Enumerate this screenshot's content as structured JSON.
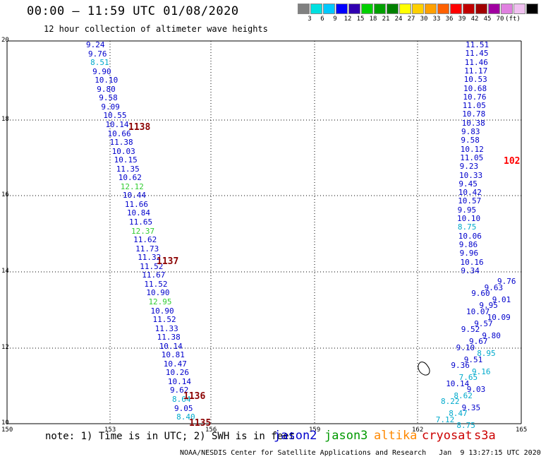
{
  "header": {
    "title": "00:00 – 11:59 UTC 01/08/2020",
    "subtitle": "12 hour collection of altimeter wave heights"
  },
  "colorbar": {
    "colors": [
      "#808080",
      "#00e0e0",
      "#00c8ff",
      "#0000ff",
      "#3000b0",
      "#00d000",
      "#00a000",
      "#008000",
      "#ffff00",
      "#ffd000",
      "#ffa000",
      "#ff6000",
      "#ff0000",
      "#c00000",
      "#a00000",
      "#a000a0",
      "#e080e0",
      "#f0c0f0",
      "#000000"
    ],
    "labels": [
      "3",
      "6",
      "9",
      "12",
      "15",
      "18",
      "21",
      "24",
      "27",
      "30",
      "33",
      "36",
      "39",
      "42",
      "45",
      "70",
      "(ft)"
    ]
  },
  "axes": {
    "lat_ticks": [
      "20",
      "18",
      "16",
      "14",
      "12",
      "10"
    ],
    "lon_ticks": [
      "150",
      "153",
      "156",
      "159",
      "162",
      "165"
    ]
  },
  "tracks": {
    "left": [
      {
        "v": "9.24",
        "c": "#0000cc"
      },
      {
        "v": "9.76",
        "c": "#0000cc"
      },
      {
        "v": "8.51",
        "c": "#00aacc"
      },
      {
        "v": "9.90",
        "c": "#0000cc"
      },
      {
        "v": "10.10",
        "c": "#0000cc"
      },
      {
        "v": "9.80",
        "c": "#0000cc"
      },
      {
        "v": "9.58",
        "c": "#0000cc"
      },
      {
        "v": "9.09",
        "c": "#0000cc"
      },
      {
        "v": "10.55",
        "c": "#0000cc"
      },
      {
        "v": "10.14",
        "c": "#0000cc"
      },
      {
        "v": "10.66",
        "c": "#0000cc"
      },
      {
        "v": "11.38",
        "c": "#0000cc"
      },
      {
        "v": "10.03",
        "c": "#0000cc"
      },
      {
        "v": "10.15",
        "c": "#0000cc"
      },
      {
        "v": "11.35",
        "c": "#0000cc"
      },
      {
        "v": "10.62",
        "c": "#0000cc"
      },
      {
        "v": "12.12",
        "c": "#33cc33"
      },
      {
        "v": "10.44",
        "c": "#0000cc"
      },
      {
        "v": "11.66",
        "c": "#0000cc"
      },
      {
        "v": "10.84",
        "c": "#0000cc"
      },
      {
        "v": "11.65",
        "c": "#0000cc"
      },
      {
        "v": "12.37",
        "c": "#33cc33"
      },
      {
        "v": "11.62",
        "c": "#0000cc"
      },
      {
        "v": "11.73",
        "c": "#0000cc"
      },
      {
        "v": "11.32",
        "c": "#0000cc"
      },
      {
        "v": "11.52",
        "c": "#0000cc"
      },
      {
        "v": "11.67",
        "c": "#0000cc"
      },
      {
        "v": "11.52",
        "c": "#0000cc"
      },
      {
        "v": "10.90",
        "c": "#0000cc"
      },
      {
        "v": "12.95",
        "c": "#33cc33"
      },
      {
        "v": "10.90",
        "c": "#0000cc"
      },
      {
        "v": "11.52",
        "c": "#0000cc"
      },
      {
        "v": "11.33",
        "c": "#0000cc"
      },
      {
        "v": "11.38",
        "c": "#0000cc"
      },
      {
        "v": "10.14",
        "c": "#0000cc"
      },
      {
        "v": "10.81",
        "c": "#0000cc"
      },
      {
        "v": "10.47",
        "c": "#0000cc"
      },
      {
        "v": "10.26",
        "c": "#0000cc"
      },
      {
        "v": "10.14",
        "c": "#0000cc"
      },
      {
        "v": "9.62",
        "c": "#0000cc"
      },
      {
        "v": "8.64",
        "c": "#00aacc"
      },
      {
        "v": "9.05",
        "c": "#0000cc"
      },
      {
        "v": "8.40",
        "c": "#00aacc"
      }
    ],
    "right": [
      {
        "v": "11.51",
        "c": "#0000cc"
      },
      {
        "v": "11.45",
        "c": "#0000cc"
      },
      {
        "v": "11.46",
        "c": "#0000cc"
      },
      {
        "v": "11.17",
        "c": "#0000cc"
      },
      {
        "v": "10.53",
        "c": "#0000cc"
      },
      {
        "v": "10.68",
        "c": "#0000cc"
      },
      {
        "v": "10.76",
        "c": "#0000cc"
      },
      {
        "v": "11.05",
        "c": "#0000cc"
      },
      {
        "v": "10.78",
        "c": "#0000cc"
      },
      {
        "v": "10.38",
        "c": "#0000cc"
      },
      {
        "v": "9.83",
        "c": "#0000cc"
      },
      {
        "v": "9.58",
        "c": "#0000cc"
      },
      {
        "v": "10.12",
        "c": "#0000cc"
      },
      {
        "v": "11.05",
        "c": "#0000cc"
      },
      {
        "v": "9.23",
        "c": "#0000cc"
      },
      {
        "v": "10.33",
        "c": "#0000cc"
      },
      {
        "v": "9.45",
        "c": "#0000cc"
      },
      {
        "v": "10.42",
        "c": "#0000cc"
      },
      {
        "v": "10.57",
        "c": "#0000cc"
      },
      {
        "v": "9.95",
        "c": "#0000cc"
      },
      {
        "v": "10.10",
        "c": "#0000cc"
      },
      {
        "v": "8.75",
        "c": "#00aacc"
      },
      {
        "v": "10.06",
        "c": "#0000cc"
      },
      {
        "v": "9.86",
        "c": "#0000cc"
      },
      {
        "v": "9.96",
        "c": "#0000cc"
      },
      {
        "v": "10.16",
        "c": "#0000cc"
      },
      {
        "v": "9.34",
        "c": "#0000cc"
      }
    ],
    "crowd": [
      {
        "v": "9.76",
        "c": "#0000cc"
      },
      {
        "v": "9.63",
        "c": "#0000cc"
      },
      {
        "v": "9.60",
        "c": "#0000cc"
      },
      {
        "v": "9.01",
        "c": "#0000cc"
      },
      {
        "v": "9.95",
        "c": "#0000cc"
      },
      {
        "v": "10.07",
        "c": "#0000cc"
      },
      {
        "v": "10.09",
        "c": "#0000cc"
      },
      {
        "v": "9.57",
        "c": "#0000cc"
      },
      {
        "v": "9.52",
        "c": "#0000cc"
      },
      {
        "v": "9.80",
        "c": "#0000cc"
      },
      {
        "v": "9.67",
        "c": "#0000cc"
      },
      {
        "v": "9.10",
        "c": "#0000cc"
      },
      {
        "v": "8.95",
        "c": "#00aacc"
      },
      {
        "v": "9.51",
        "c": "#0000cc"
      },
      {
        "v": "9.36",
        "c": "#0000cc"
      },
      {
        "v": "9.16",
        "c": "#00aacc"
      },
      {
        "v": "7.65",
        "c": "#00aacc"
      },
      {
        "v": "10.14",
        "c": "#0000cc"
      },
      {
        "v": "9.03",
        "c": "#0000cc"
      },
      {
        "v": "8.62",
        "c": "#00aacc"
      },
      {
        "v": "8.22",
        "c": "#00aacc"
      },
      {
        "v": "9.35",
        "c": "#0000cc"
      },
      {
        "v": "8.47",
        "c": "#00aacc"
      },
      {
        "v": "7.12",
        "c": "#00aacc"
      },
      {
        "v": "8.75",
        "c": "#00aacc"
      }
    ],
    "revs": [
      {
        "v": "1138",
        "c": "#8b0000"
      },
      {
        "v": "1137",
        "c": "#8b0000"
      },
      {
        "v": "1136",
        "c": "#8b0000"
      },
      {
        "v": "1135",
        "c": "#8b0000"
      },
      {
        "v": "102",
        "c": "#ff0000"
      }
    ]
  },
  "note": "note: 1) Time is in UTC; 2) SWH is in feet",
  "legend": [
    {
      "name": "jason2",
      "c": "#0000cc"
    },
    {
      "name": "jason3",
      "c": "#009900"
    },
    {
      "name": "altika",
      "c": "#ff8800"
    },
    {
      "name": "cryosat",
      "c": "#cc0000"
    },
    {
      "name": "s3a",
      "c": "#cc0000"
    }
  ],
  "footer": "NOAA/NESDIS Center for Satellite Applications and Research   Jan  9 13:27:15 UTC 2020"
}
